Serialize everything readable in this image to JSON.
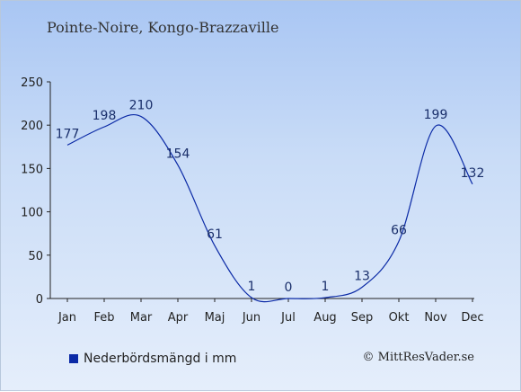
{
  "chart_title": "Pointe-Noire, Kongo-Brazzaville",
  "legend_label": "Nederbördsmängd i mm",
  "credit": "© MittResVader.se",
  "colors": {
    "line": "#0b2aa6",
    "text": "#1a2f6b",
    "axis": "#222222"
  },
  "chart_data": {
    "type": "line",
    "title": "Pointe-Noire, Kongo-Brazzaville",
    "categories": [
      "Jan",
      "Feb",
      "Mar",
      "Apr",
      "Maj",
      "Jun",
      "Jul",
      "Aug",
      "Sep",
      "Okt",
      "Nov",
      "Dec"
    ],
    "series": [
      {
        "name": "Nederbördsmängd i mm",
        "values": [
          177,
          198,
          210,
          154,
          61,
          1,
          0,
          1,
          13,
          66,
          199,
          132
        ]
      }
    ],
    "ylim": [
      0,
      250
    ],
    "yticks": [
      0,
      50,
      100,
      150,
      200,
      250
    ],
    "grid": false,
    "legend": "bottom-left"
  }
}
